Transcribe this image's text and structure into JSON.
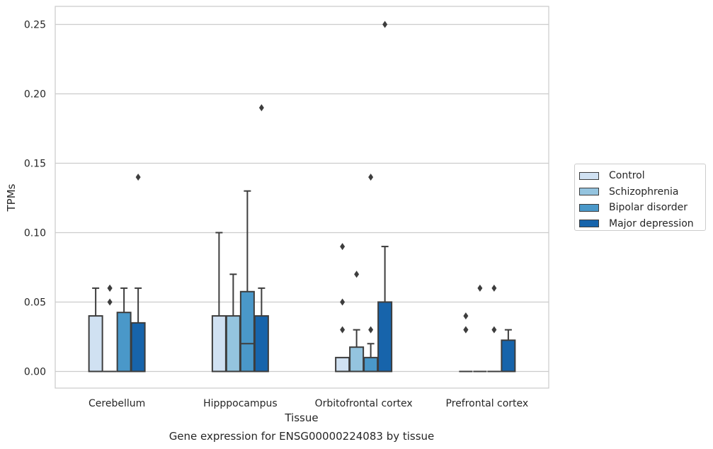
{
  "chart_data": {
    "type": "box",
    "title": "",
    "caption": "Gene expression for ENSG00000224083 by tissue",
    "xlabel": "Tissue",
    "ylabel": "TPMs",
    "ylim": [
      -0.012,
      0.263
    ],
    "yticks": [
      "0.00",
      "0.05",
      "0.10",
      "0.15",
      "0.20",
      "0.25"
    ],
    "grid": "horizontal",
    "legend_placement": "right",
    "categories": [
      "Cerebellum",
      "Hipppocampus",
      "Orbitofrontal cortex",
      "Prefrontal cortex"
    ],
    "series": [
      {
        "name": "Control",
        "color": "#d0e1f2",
        "boxes": [
          {
            "q1": 0.0,
            "median": 0.0,
            "q3": 0.04,
            "whisker_low": 0.0,
            "whisker_high": 0.06,
            "outliers": []
          },
          {
            "q1": 0.0,
            "median": 0.0,
            "q3": 0.04,
            "whisker_low": 0.0,
            "whisker_high": 0.1,
            "outliers": []
          },
          {
            "q1": 0.0,
            "median": 0.0,
            "q3": 0.01,
            "whisker_low": 0.0,
            "whisker_high": 0.01,
            "outliers": [
              0.03,
              0.05,
              0.09
            ]
          },
          {
            "q1": 0.0,
            "median": 0.0,
            "q3": 0.0,
            "whisker_low": 0.0,
            "whisker_high": 0.0,
            "outliers": [
              0.03,
              0.03,
              0.04
            ]
          }
        ]
      },
      {
        "name": "Schizophrenia",
        "color": "#94c4df",
        "boxes": [
          {
            "q1": 0.0,
            "median": 0.0,
            "q3": 0.0,
            "whisker_low": 0.0,
            "whisker_high": 0.0,
            "outliers": [
              0.05,
              0.06,
              0.06
            ]
          },
          {
            "q1": 0.0,
            "median": 0.0,
            "q3": 0.04,
            "whisker_low": 0.0,
            "whisker_high": 0.07,
            "outliers": []
          },
          {
            "q1": 0.0,
            "median": 0.0,
            "q3": 0.0175,
            "whisker_low": 0.0,
            "whisker_high": 0.03,
            "outliers": [
              0.07
            ]
          },
          {
            "q1": 0.0,
            "median": 0.0,
            "q3": 0.0,
            "whisker_low": 0.0,
            "whisker_high": 0.0,
            "outliers": [
              0.06
            ]
          }
        ]
      },
      {
        "name": "Bipolar disorder",
        "color": "#4a98c9",
        "boxes": [
          {
            "q1": 0.0,
            "median": 0.0,
            "q3": 0.0425,
            "whisker_low": 0.0,
            "whisker_high": 0.06,
            "outliers": []
          },
          {
            "q1": 0.0,
            "median": 0.02,
            "q3": 0.0575,
            "whisker_low": 0.0,
            "whisker_high": 0.13,
            "outliers": []
          },
          {
            "q1": 0.0,
            "median": 0.0,
            "q3": 0.01,
            "whisker_low": 0.0,
            "whisker_high": 0.02,
            "outliers": [
              0.03,
              0.14
            ]
          },
          {
            "q1": 0.0,
            "median": 0.0,
            "q3": 0.0,
            "whisker_low": 0.0,
            "whisker_high": 0.0,
            "outliers": [
              0.03,
              0.06
            ]
          }
        ]
      },
      {
        "name": "Major depression",
        "color": "#1764ab",
        "boxes": [
          {
            "q1": 0.0,
            "median": 0.0,
            "q3": 0.035,
            "whisker_low": 0.0,
            "whisker_high": 0.06,
            "outliers": [
              0.14
            ]
          },
          {
            "q1": 0.0,
            "median": 0.0,
            "q3": 0.04,
            "whisker_low": 0.0,
            "whisker_high": 0.06,
            "outliers": [
              0.19
            ]
          },
          {
            "q1": 0.0,
            "median": 0.0,
            "q3": 0.05,
            "whisker_low": 0.0,
            "whisker_high": 0.09,
            "outliers": [
              0.25
            ]
          },
          {
            "q1": 0.0,
            "median": 0.0,
            "q3": 0.0225,
            "whisker_low": 0.0,
            "whisker_high": 0.03,
            "outliers": []
          }
        ]
      }
    ]
  }
}
